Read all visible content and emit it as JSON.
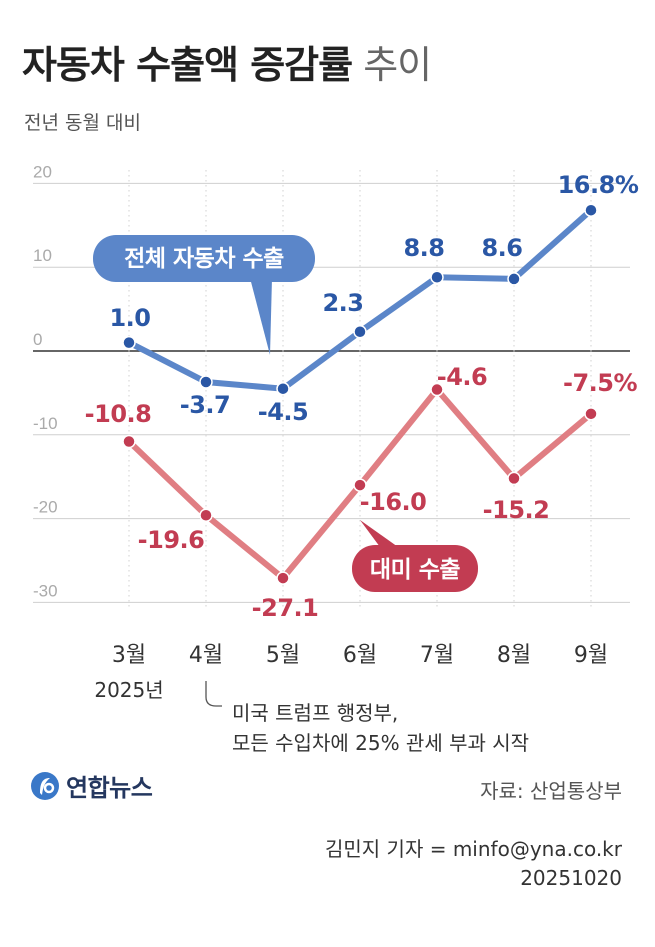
{
  "header": {
    "title_bold": "자동차 수출액 증감률",
    "title_light": "추이",
    "subtitle": "전년 동월 대비"
  },
  "chart_data": {
    "type": "line",
    "categories": [
      "3월",
      "4월",
      "5월",
      "6월",
      "7월",
      "8월",
      "9월"
    ],
    "year_label": "2025년",
    "ylim": [
      -30,
      20
    ],
    "yticks": [
      20,
      10,
      0,
      -10,
      -20,
      -30
    ],
    "series": [
      {
        "name": "전체 자동차 수출",
        "color": "#5b86c9",
        "label_color": "#2a57a5",
        "values": [
          1.0,
          -3.7,
          -4.5,
          2.3,
          8.8,
          8.6,
          16.8
        ],
        "labels": [
          "1.0",
          "-3.7",
          "-4.5",
          "2.3",
          "8.8",
          "8.6",
          "16.8%"
        ]
      },
      {
        "name": "대미 수출",
        "color": "#e07e83",
        "label_color": "#c23c52",
        "values": [
          -10.8,
          -19.6,
          -27.1,
          -16.0,
          -4.6,
          -15.2,
          -7.5
        ],
        "labels": [
          "-10.8",
          "-19.6",
          "-27.1",
          "-16.0",
          "-4.6",
          "-15.2",
          "-7.5%"
        ]
      }
    ],
    "legend_bubbles": {
      "total": "전체 자동차 수출",
      "us": "대미 수출"
    }
  },
  "annotation": {
    "line1": "미국 트럼프 행정부,",
    "line2": "모든 수입차에 25% 관세 부과 시작"
  },
  "footer": {
    "logo_text": "연합뉴스",
    "source": "자료: 산업통상부",
    "credit": "김민지 기자 = minfo@yna.co.kr",
    "date": "20251020"
  },
  "colors": {
    "total_line": "#5b86c9",
    "us_line": "#e07e83",
    "bubble_blue": "#5b86c9",
    "bubble_red": "#c23c52"
  }
}
